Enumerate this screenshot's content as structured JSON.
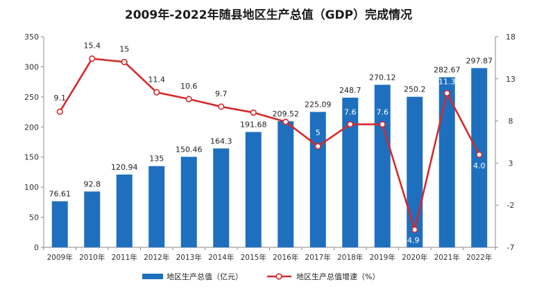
{
  "chart_data": {
    "type": "bar+line",
    "title": "2009年-2022年随县地区生产总值（GDP）完成情况",
    "categories": [
      "2009年",
      "2010年",
      "2011年",
      "2012年",
      "2013年",
      "2014年",
      "2015年",
      "2016年",
      "2017年",
      "2018年",
      "2019年",
      "2020年",
      "2021年",
      "2022年"
    ],
    "series": [
      {
        "name": "地区生产总值（亿元）",
        "type": "bar",
        "axis": "left",
        "color": "#1f6fbf",
        "values": [
          76.61,
          92.8,
          120.94,
          135,
          150.46,
          164.3,
          191.68,
          209.52,
          225.09,
          248.7,
          270.12,
          250.2,
          282.67,
          297.87
        ],
        "labels": [
          "76.61",
          "92.8",
          "120.94",
          "135",
          "150.46",
          "164.3",
          "191.68",
          "209.52",
          "225.09",
          "248.7",
          "270.12",
          "250.2",
          "282.67",
          "297.87"
        ]
      },
      {
        "name": "地区生产总值增速（%）",
        "type": "line",
        "axis": "right",
        "color": "#d42a2a",
        "values": [
          9.1,
          15.4,
          15,
          11.4,
          10.6,
          9.7,
          9,
          7.9,
          5,
          7.6,
          7.6,
          -4.9,
          11.3,
          4.0
        ],
        "labels": [
          "9.1",
          "15.4",
          "15",
          "11.4",
          "10.6",
          "9.7",
          "",
          "",
          "5",
          "7.6",
          "7.6",
          "-4.9",
          "11.3",
          "4.0"
        ]
      }
    ],
    "left_axis": {
      "ylim": [
        0,
        350
      ],
      "ticks": [
        "0",
        "50",
        "100",
        "150",
        "200",
        "250",
        "300",
        "350"
      ]
    },
    "right_axis": {
      "ylim": [
        -7,
        18
      ],
      "ticks": [
        "-7",
        "-2",
        "3",
        "8",
        "13",
        "18"
      ]
    },
    "grid": false,
    "legend_position": "bottom"
  }
}
